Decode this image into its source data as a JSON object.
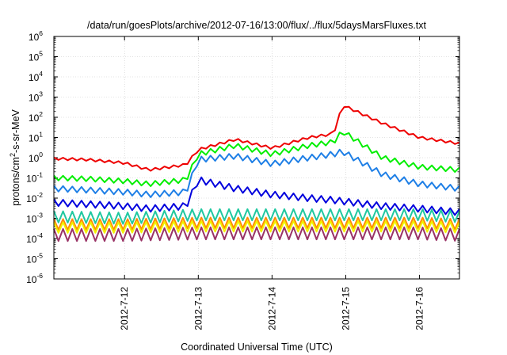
{
  "chart_data": {
    "type": "line",
    "title": "/data/run/goesPlots/archive/2012-07-16/13:00/flux/../flux/5daysMarsFluxes.txt",
    "xlabel": "Coordinated Universal Time (UTC)",
    "ylabel_main": "protons/cm",
    "ylabel_sup": "2",
    "ylabel_rest": "-s-sr-MeV",
    "yscale": "log",
    "ylim_exp": [
      -6,
      6
    ],
    "y_tick_exponents": [
      -6,
      -5,
      -4,
      -3,
      -2,
      -1,
      0,
      1,
      2,
      3,
      4,
      5,
      6
    ],
    "y_tick_base": "10",
    "x_range_days": [
      "2012-07-11 01:00",
      "2012-07-16 13:00"
    ],
    "x_ticks": [
      {
        "label": "2012-7-12",
        "date": "2012-07-12 00:00"
      },
      {
        "label": "2012-7-13",
        "date": "2012-07-13 00:00"
      },
      {
        "label": "2012-7-14",
        "date": "2012-07-14 00:00"
      },
      {
        "label": "2012-7-15",
        "date": "2012-07-15 00:00"
      },
      {
        "label": "2012-7-16",
        "date": "2012-07-16 00:00"
      }
    ],
    "grid": true,
    "legend": "none",
    "series": [
      {
        "color": "#ee0000",
        "x": [
          "2012-07-11 01:00",
          "2012-07-11 12:00",
          "2012-07-12 00:00",
          "2012-07-12 08:00",
          "2012-07-12 20:00",
          "2012-07-13 00:00",
          "2012-07-13 12:00",
          "2012-07-14 00:00",
          "2012-07-14 12:00",
          "2012-07-14 20:00",
          "2012-07-14 23:00",
          "2012-07-15 12:00",
          "2012-07-16 00:00",
          "2012-07-16 13:00"
        ],
        "values": [
          0.9,
          0.8,
          0.55,
          0.25,
          0.45,
          2.5,
          8,
          3,
          10,
          15,
          400,
          50,
          10,
          5
        ]
      },
      {
        "color": "#00ee00",
        "x": [
          "2012-07-11 01:00",
          "2012-07-11 12:00",
          "2012-07-12 00:00",
          "2012-07-12 08:00",
          "2012-07-12 20:00",
          "2012-07-13 00:00",
          "2012-07-13 12:00",
          "2012-07-14 00:00",
          "2012-07-14 12:00",
          "2012-07-14 20:00",
          "2012-07-14 23:00",
          "2012-07-15 12:00",
          "2012-07-16 00:00",
          "2012-07-16 13:00"
        ],
        "values": [
          0.1,
          0.09,
          0.07,
          0.05,
          0.08,
          1.5,
          4,
          1.5,
          4,
          6,
          20,
          1,
          0.35,
          0.25
        ]
      },
      {
        "color": "#1e7fe6",
        "x": [
          "2012-07-11 01:00",
          "2012-07-11 12:00",
          "2012-07-12 00:00",
          "2012-07-12 08:00",
          "2012-07-12 20:00",
          "2012-07-13 00:00",
          "2012-07-13 12:00",
          "2012-07-14 00:00",
          "2012-07-14 12:00",
          "2012-07-14 20:00",
          "2012-07-14 23:00",
          "2012-07-15 12:00",
          "2012-07-16 00:00",
          "2012-07-16 13:00"
        ],
        "values": [
          0.03,
          0.025,
          0.02,
          0.015,
          0.02,
          0.8,
          1.2,
          0.5,
          1,
          1.5,
          2,
          0.15,
          0.05,
          0.03
        ]
      },
      {
        "color": "#0000dd",
        "x": [
          "2012-07-11 01:00",
          "2012-07-11 12:00",
          "2012-07-12 00:00",
          "2012-07-12 08:00",
          "2012-07-12 20:00",
          "2012-07-13 00:00",
          "2012-07-13 12:00",
          "2012-07-14 00:00",
          "2012-07-14 12:00",
          "2012-07-14 20:00",
          "2012-07-14 23:00",
          "2012-07-15 12:00",
          "2012-07-16 00:00",
          "2012-07-16 13:00"
        ],
        "values": [
          0.006,
          0.005,
          0.004,
          0.003,
          0.004,
          0.08,
          0.03,
          0.015,
          0.01,
          0.008,
          0.007,
          0.004,
          0.003,
          0.002
        ]
      },
      {
        "color": "#20c8a0",
        "x": [
          "2012-07-11 01:00",
          "2012-07-12 00:00",
          "2012-07-13 00:00",
          "2012-07-14 00:00",
          "2012-07-15 00:00",
          "2012-07-16 00:00",
          "2012-07-16 13:00"
        ],
        "values": [
          0.0012,
          0.001,
          0.0015,
          0.0015,
          0.0015,
          0.0015,
          0.0012
        ]
      },
      {
        "color": "#ff8c00",
        "x": [
          "2012-07-11 01:00",
          "2012-07-12 00:00",
          "2012-07-13 00:00",
          "2012-07-14 00:00",
          "2012-07-15 00:00",
          "2012-07-16 00:00",
          "2012-07-16 13:00"
        ],
        "values": [
          0.0005,
          0.0005,
          0.0006,
          0.0006,
          0.0006,
          0.0006,
          0.0005
        ]
      },
      {
        "color": "#f2f200",
        "x": [
          "2012-07-11 01:00",
          "2012-07-12 00:00",
          "2012-07-13 00:00",
          "2012-07-14 00:00",
          "2012-07-15 00:00",
          "2012-07-16 00:00",
          "2012-07-16 13:00"
        ],
        "values": [
          0.00035,
          0.00035,
          0.0004,
          0.0004,
          0.0004,
          0.0004,
          0.00035
        ]
      },
      {
        "color": "#993366",
        "x": [
          "2012-07-11 01:00",
          "2012-07-12 00:00",
          "2012-07-13 00:00",
          "2012-07-14 00:00",
          "2012-07-15 00:00",
          "2012-07-16 00:00",
          "2012-07-16 13:00"
        ],
        "values": [
          0.00015,
          0.00015,
          0.00018,
          0.00018,
          0.00018,
          0.00018,
          0.00015
        ]
      }
    ]
  }
}
